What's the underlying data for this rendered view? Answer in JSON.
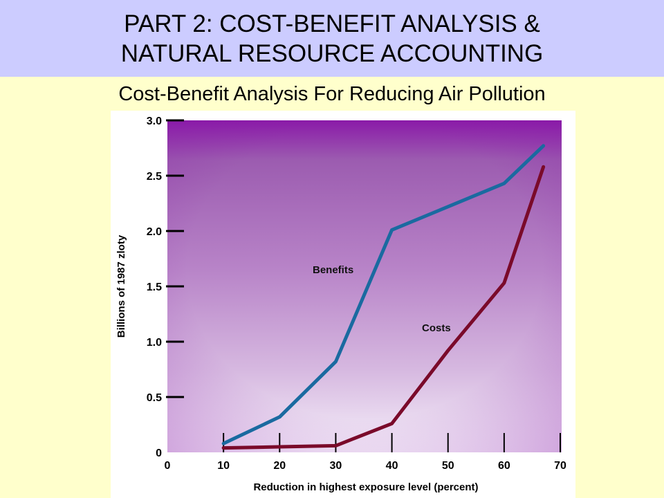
{
  "slide": {
    "title_line1": "PART 2:  COST-BENEFIT ANALYSIS &",
    "title_line2": "NATURAL RESOURCE ACCOUNTING",
    "subtitle": "Cost-Benefit Analysis For Reducing Air Pollution"
  },
  "colors": {
    "title_bg": "#ccccff",
    "slide_bg": "#ffffcc",
    "benefits_line": "#1a6aa0",
    "costs_line": "#7a0a2a",
    "plot_top": "#8a1aa8",
    "plot_bottom": "#f6f0fa"
  },
  "chart_data": {
    "type": "line",
    "xlabel": "Reduction in highest exposure level (percent)",
    "ylabel": "Billions of 1987 zloty",
    "xlim": [
      0,
      70
    ],
    "ylim": [
      0,
      3.0
    ],
    "x_ticks": [
      "0",
      "10",
      "20",
      "30",
      "40",
      "50",
      "60",
      "70"
    ],
    "y_ticks": [
      "0",
      "0.5",
      "1.0",
      "1.5",
      "2.0",
      "2.5",
      "3.0"
    ],
    "y_tick_values": [
      0,
      0.5,
      1.0,
      1.5,
      2.0,
      2.5,
      3.0
    ],
    "x_tick_values": [
      0,
      10,
      20,
      30,
      40,
      50,
      60,
      70
    ],
    "grid": false,
    "series": [
      {
        "name": "Benefits",
        "x": [
          10,
          20,
          30,
          40,
          50,
          60,
          67
        ],
        "y": [
          0.08,
          0.32,
          0.82,
          2.01,
          2.22,
          2.43,
          2.77
        ]
      },
      {
        "name": "Costs",
        "x": [
          10,
          20,
          30,
          40,
          50,
          60,
          67
        ],
        "y": [
          0.04,
          0.05,
          0.06,
          0.26,
          0.92,
          1.53,
          2.58
        ]
      }
    ]
  }
}
